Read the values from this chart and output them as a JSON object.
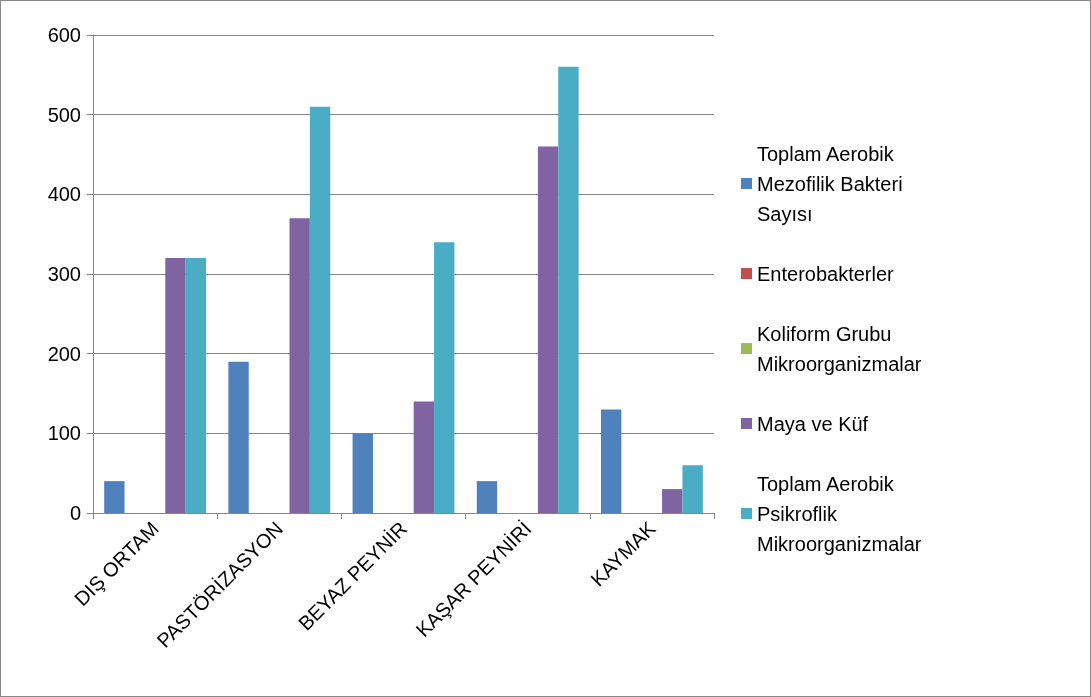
{
  "chart_data": {
    "type": "bar",
    "categories": [
      "DIŞ ORTAM",
      "PASTÖRİZASYON",
      "BEYAZ PEYNİR",
      "KAŞAR PEYNİRİ",
      "KAYMAK"
    ],
    "series": [
      {
        "name": "Toplam Aerobik Mezofilik Bakteri Sayısı",
        "color": "#4f81bd",
        "values": [
          40,
          190,
          100,
          40,
          130
        ]
      },
      {
        "name": "Enterobakterler",
        "color": "#c0504d",
        "values": [
          0,
          0,
          0,
          0,
          0
        ]
      },
      {
        "name": "Koliform Grubu Mikroorganizmalar",
        "color": "#9bbb59",
        "values": [
          0,
          0,
          0,
          0,
          0
        ]
      },
      {
        "name": "Maya ve Küf",
        "color": "#8064a2",
        "values": [
          320,
          370,
          140,
          460,
          30
        ]
      },
      {
        "name": "Toplam Aerobik Psikroflik Mikroorganizmalar",
        "color": "#4bacc6",
        "values": [
          320,
          510,
          340,
          560,
          60
        ]
      }
    ],
    "ylim": [
      0,
      600
    ],
    "yticks": [
      0,
      100,
      200,
      300,
      400,
      500,
      600
    ],
    "grid": "y",
    "legend": "right"
  }
}
